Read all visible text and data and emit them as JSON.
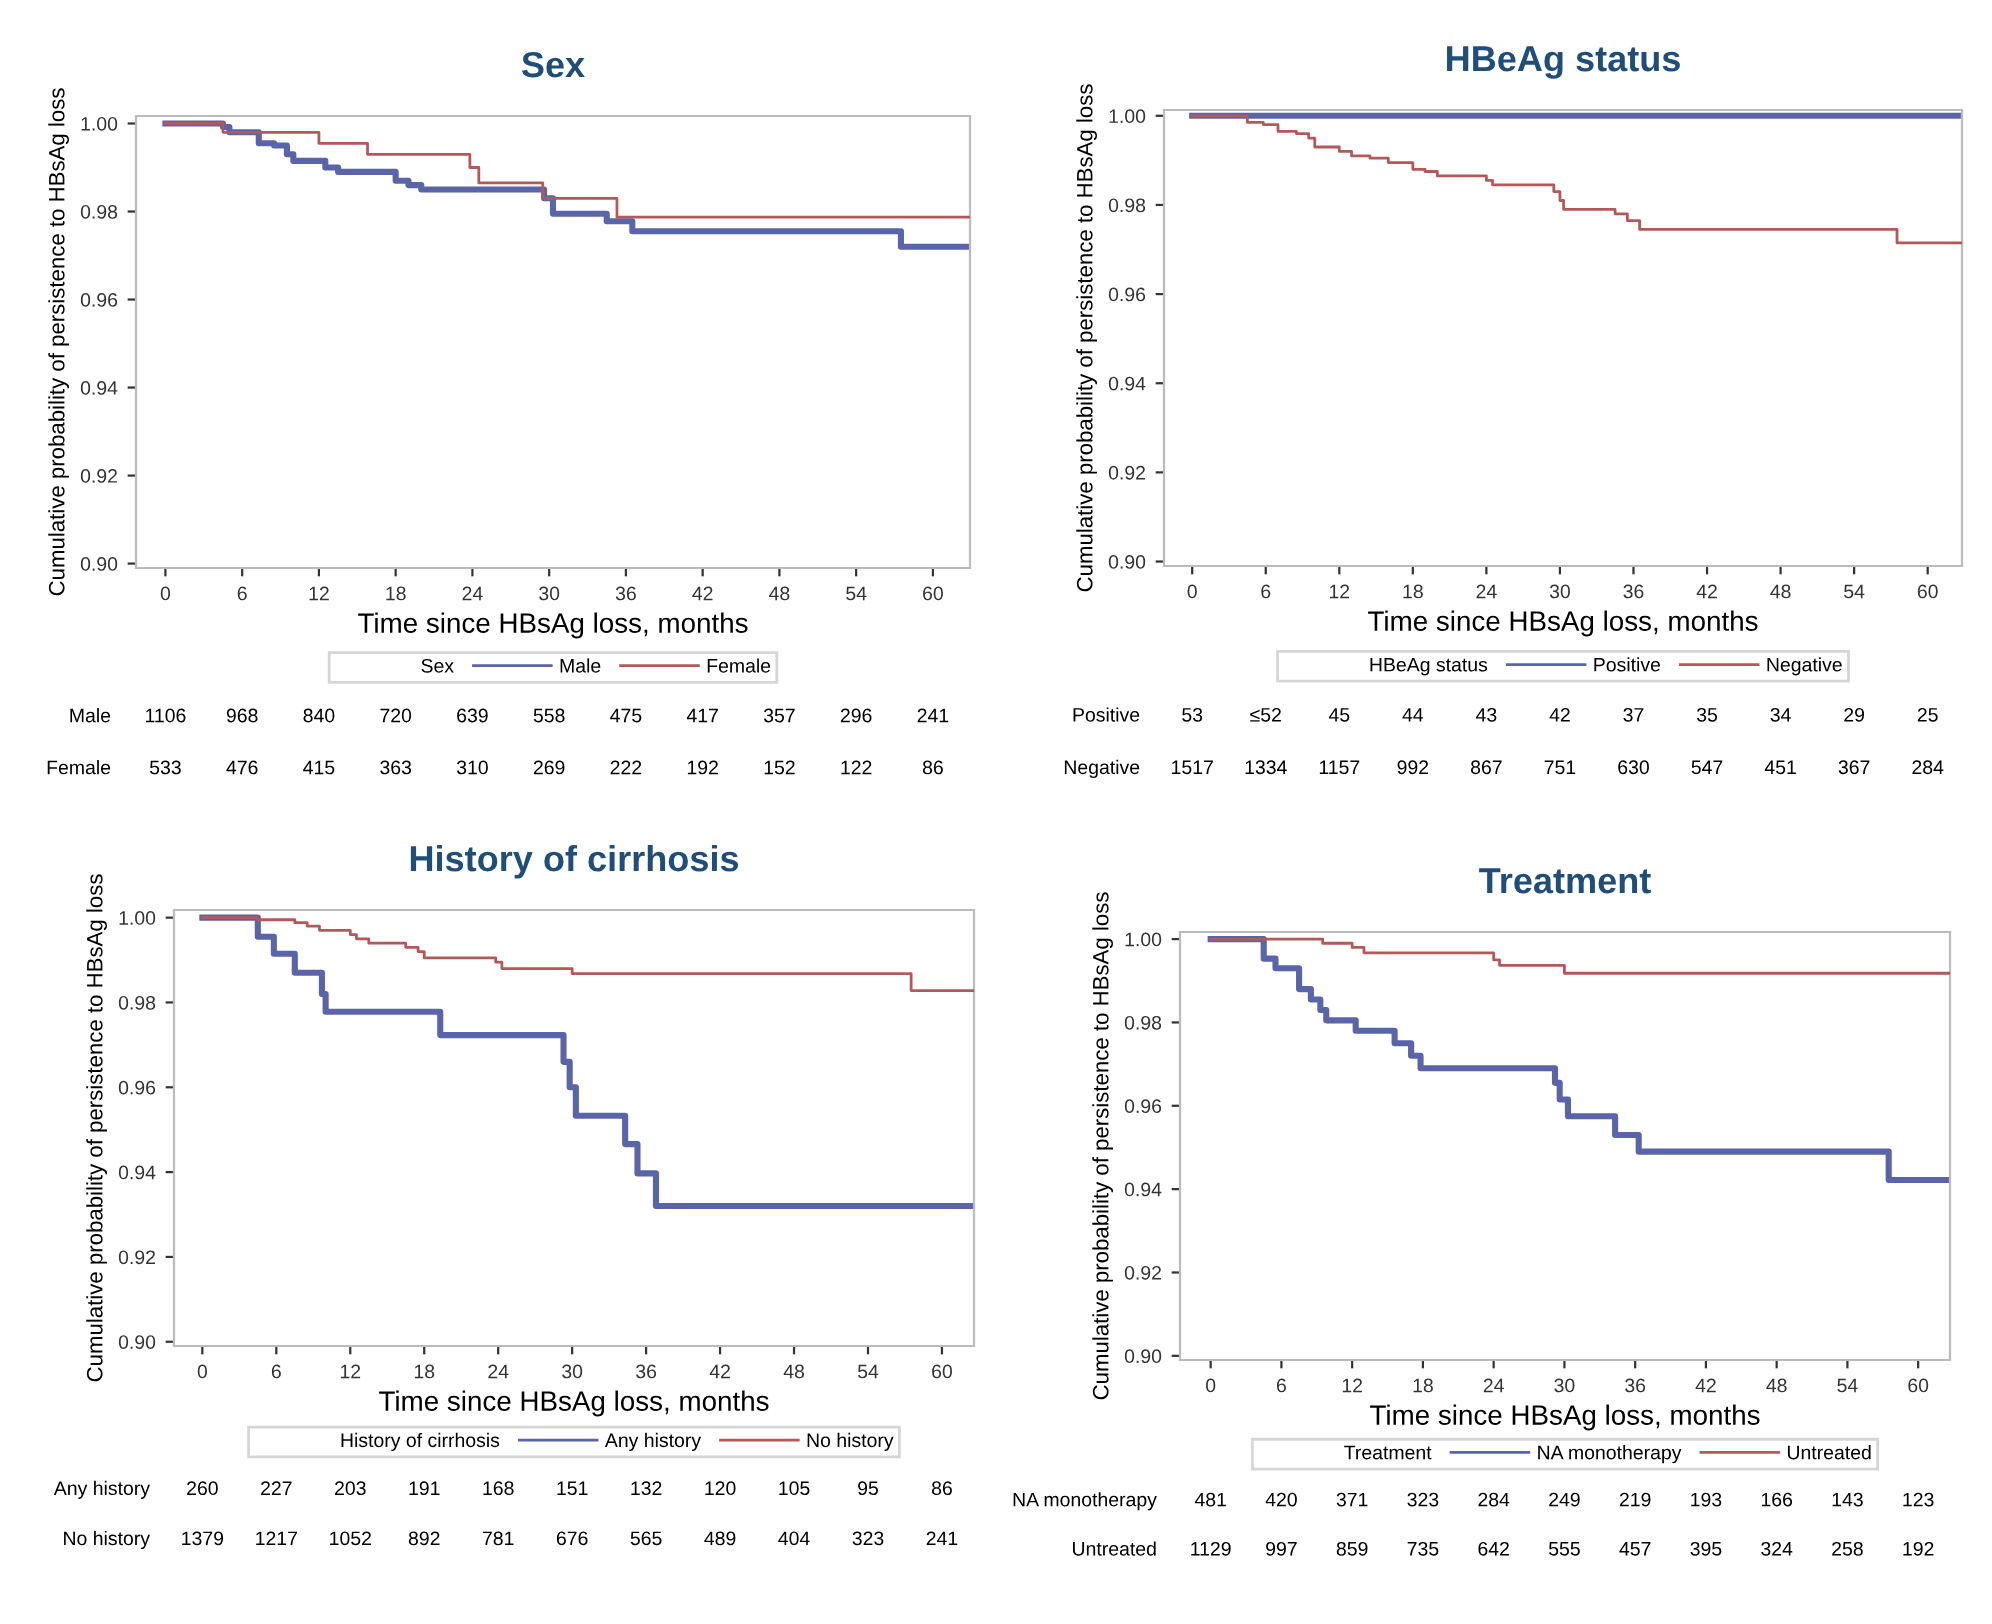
{
  "chart_data": [
    {
      "type": "step",
      "title": "Sex",
      "xlabel": "Time since HBsAg loss, months",
      "ylabel": "Cumulative probability of persistence to HBsAg loss",
      "legend_title": "Sex",
      "legend": "bottom",
      "grid": false,
      "xlim": [
        -2.3,
        62.9
      ],
      "ylim": [
        0.899,
        1.0017
      ],
      "xticks": [
        0,
        6,
        12,
        18,
        24,
        30,
        36,
        42,
        48,
        54,
        60
      ],
      "yticks": [
        {
          "value": 0.9,
          "label": "0.90"
        },
        {
          "value": 0.92,
          "label": "0.92"
        },
        {
          "value": 0.94,
          "label": "0.94"
        },
        {
          "value": 0.96,
          "label": "0.96"
        },
        {
          "value": 0.98,
          "label": "0.98"
        },
        {
          "value": 1.0,
          "label": "1.00"
        }
      ],
      "series": [
        {
          "name": "Male",
          "color": "#5a64a8",
          "x": [
            0,
            4.5,
            5.0,
            7.3,
            8.5,
            9.5,
            10,
            12.5,
            13.5,
            18,
            19,
            20,
            29.6,
            30.3,
            34.5,
            36.5,
            57.5,
            62.9
          ],
          "values": [
            1.0,
            0.9992,
            0.998,
            0.9955,
            0.995,
            0.993,
            0.9915,
            0.99,
            0.989,
            0.987,
            0.986,
            0.985,
            0.983,
            0.9795,
            0.9778,
            0.9755,
            0.972,
            0.972
          ]
        },
        {
          "name": "Female",
          "color": "#b5585a",
          "x": [
            0,
            4.5,
            12,
            15.8,
            23.8,
            24.5,
            29.5,
            35.3,
            62.9
          ],
          "values": [
            1.0,
            0.998,
            0.9955,
            0.993,
            0.99,
            0.9865,
            0.983,
            0.9787,
            0.9787
          ]
        }
      ],
      "annotations": [
        "Male",
        "1106",
        "968",
        "840",
        "720",
        "639",
        "558",
        "475",
        "417",
        "357",
        "296",
        "241",
        "Female",
        "533",
        "476",
        "415",
        "363",
        "310",
        "269",
        "222",
        "192",
        "152",
        "122",
        "86"
      ]
    },
    {
      "type": "step",
      "title": "HBeAg status",
      "xlabel": "Time since HBsAg loss, months",
      "ylabel": "Cumulative probability of persistence to HBsAg loss",
      "legend_title": "HBeAg status",
      "legend": "bottom",
      "grid": false,
      "xlim": [
        -2.3,
        62.8
      ],
      "ylim": [
        0.899,
        1.0013
      ],
      "xticks": [
        0,
        6,
        12,
        18,
        24,
        30,
        36,
        42,
        48,
        54,
        60
      ],
      "yticks": [
        {
          "value": 0.9,
          "label": "0.90"
        },
        {
          "value": 0.92,
          "label": "0.92"
        },
        {
          "value": 0.94,
          "label": "0.94"
        },
        {
          "value": 0.96,
          "label": "0.96"
        },
        {
          "value": 0.98,
          "label": "0.98"
        },
        {
          "value": 1.0,
          "label": "1.00"
        }
      ],
      "series": [
        {
          "name": "Positive",
          "color": "#5a64a8",
          "x": [
            0,
            62.8
          ],
          "values": [
            1.0,
            1.0
          ]
        },
        {
          "name": "Negative",
          "color": "#b5585a",
          "x": [
            0,
            4.5,
            5.8,
            7,
            8.5,
            9.5,
            10,
            12,
            13,
            14.5,
            16,
            18,
            19,
            20,
            24,
            24.5,
            29.5,
            30,
            30.3,
            34.5,
            35.5,
            36.5,
            57.5,
            62.8
          ],
          "values": [
            1.0,
            0.9985,
            0.998,
            0.9965,
            0.996,
            0.995,
            0.993,
            0.992,
            0.991,
            0.9905,
            0.9895,
            0.988,
            0.9875,
            0.9865,
            0.9855,
            0.9845,
            0.983,
            0.981,
            0.979,
            0.978,
            0.9765,
            0.9745,
            0.9715,
            0.9715
          ]
        }
      ],
      "annotations": [
        "Positive",
        "53",
        "≤52",
        "45",
        "44",
        "43",
        "42",
        "37",
        "35",
        "34",
        "29",
        "25",
        "Negative",
        "1517",
        "1334",
        "1157",
        "992",
        "867",
        "751",
        "630",
        "547",
        "451",
        "367",
        "284"
      ]
    },
    {
      "type": "step",
      "title": "History of cirrhosis",
      "xlabel": "Time since HBsAg loss, months",
      "ylabel": "Cumulative probability of persistence to HBsAg loss",
      "legend_title": "History of cirrhosis",
      "legend": "bottom",
      "grid": false,
      "xlim": [
        -2.3,
        62.6
      ],
      "ylim": [
        0.899,
        1.0018
      ],
      "xticks": [
        0,
        6,
        12,
        18,
        24,
        30,
        36,
        42,
        48,
        54,
        60
      ],
      "yticks": [
        {
          "value": 0.9,
          "label": "0.90"
        },
        {
          "value": 0.92,
          "label": "0.92"
        },
        {
          "value": 0.94,
          "label": "0.94"
        },
        {
          "value": 0.96,
          "label": "0.96"
        },
        {
          "value": 0.98,
          "label": "0.98"
        },
        {
          "value": 1.0,
          "label": "1.00"
        }
      ],
      "series": [
        {
          "name": "Any history",
          "color": "#5a64a8",
          "x": [
            0,
            4.5,
            5.8,
            7.5,
            9.7,
            10,
            19.3,
            29.3,
            29.8,
            30.3,
            34.3,
            35.3,
            36.8,
            62.6
          ],
          "values": [
            1.0,
            0.9955,
            0.9915,
            0.987,
            0.982,
            0.9778,
            0.9723,
            0.966,
            0.96,
            0.9533,
            0.9466,
            0.9397,
            0.932,
            0.932
          ]
        },
        {
          "name": "No history",
          "color": "#b5585a",
          "x": [
            0,
            4.5,
            7.5,
            8.5,
            9.5,
            12,
            12.5,
            13.5,
            16.5,
            17.5,
            18,
            23.8,
            24.3,
            30,
            57.5,
            62.6
          ],
          "values": [
            1.0,
            0.9995,
            0.9988,
            0.998,
            0.997,
            0.996,
            0.995,
            0.994,
            0.993,
            0.992,
            0.9905,
            0.9895,
            0.988,
            0.9868,
            0.9828,
            0.9828
          ]
        }
      ],
      "annotations": [
        "Any history",
        "260",
        "227",
        "203",
        "191",
        "168",
        "151",
        "132",
        "120",
        "105",
        "95",
        "86",
        "No history",
        "1379",
        "1217",
        "1052",
        "892",
        "781",
        "676",
        "565",
        "489",
        "404",
        "323",
        "241"
      ]
    },
    {
      "type": "step",
      "title": "Treatment",
      "xlabel": "Time since HBsAg loss, months",
      "ylabel": "Cumulative probability of persistence to HBsAg loss",
      "legend_title": "Treatment",
      "legend": "bottom",
      "grid": false,
      "xlim": [
        -2.6,
        62.7
      ],
      "ylim": [
        0.899,
        1.0017
      ],
      "xticks": [
        0,
        6,
        12,
        18,
        24,
        30,
        36,
        42,
        48,
        54,
        60
      ],
      "yticks": [
        {
          "value": 0.9,
          "label": "0.90"
        },
        {
          "value": 0.92,
          "label": "0.92"
        },
        {
          "value": 0.94,
          "label": "0.94"
        },
        {
          "value": 0.96,
          "label": "0.96"
        },
        {
          "value": 0.98,
          "label": "0.98"
        },
        {
          "value": 1.0,
          "label": "1.00"
        }
      ],
      "series": [
        {
          "name": "NA monotherapy",
          "color": "#5a64a8",
          "x": [
            0,
            4.5,
            5.5,
            7.5,
            8.5,
            9.3,
            9.8,
            12.3,
            15.6,
            17,
            17.8,
            29.2,
            29.6,
            30.3,
            34.3,
            36.3,
            57.5,
            62.7
          ],
          "values": [
            1.0,
            0.9953,
            0.993,
            0.988,
            0.9855,
            0.983,
            0.9805,
            0.978,
            0.975,
            0.972,
            0.969,
            0.9655,
            0.9615,
            0.9575,
            0.953,
            0.949,
            0.9422,
            0.9422
          ]
        },
        {
          "name": "Untreated",
          "color": "#b5585a",
          "x": [
            0,
            9.5,
            12,
            13,
            24,
            24.5,
            30,
            62.7
          ],
          "values": [
            1.0,
            0.999,
            0.998,
            0.9967,
            0.995,
            0.9937,
            0.9918,
            0.9918
          ]
        }
      ],
      "annotations": [
        "NA monotherapy",
        "481",
        "420",
        "371",
        "323",
        "284",
        "249",
        "219",
        "193",
        "166",
        "143",
        "123",
        "Untreated",
        "1129",
        "997",
        "859",
        "735",
        "642",
        "555",
        "457",
        "395",
        "324",
        "258",
        "192"
      ]
    }
  ]
}
